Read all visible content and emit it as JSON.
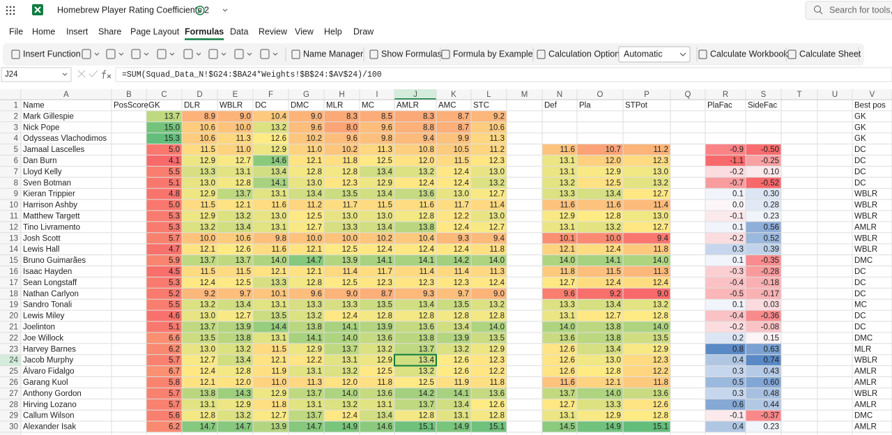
{
  "app": {
    "title": "Homebrew Player Rating Coefficients 2",
    "search": "Search for tools, h"
  },
  "menu": [
    "File",
    "Home",
    "Insert",
    "Share",
    "Page Layout",
    "Formulas",
    "Data",
    "Review",
    "View",
    "Help",
    "Draw"
  ],
  "ribbon": {
    "insert_function": "Insert Function",
    "name_manager": "Name Manager",
    "show_formulas": "Show Formulas",
    "formula_by_example": "Formula by Example",
    "calculation_options": "Calculation Options",
    "calc_mode": "Automatic",
    "calculate_workbook": "Calculate Workbook",
    "calculate_sheet": "Calculate Sheet"
  },
  "formula_bar": {
    "cell": "J24",
    "formula": "=SUM(Squad_Data_N!$G24:$BA24*Weights!$B$24:$AV$24)/100"
  },
  "sheet": {
    "columns": [
      "A",
      "B",
      "C",
      "D",
      "E",
      "F",
      "G",
      "H",
      "I",
      "J",
      "K",
      "L",
      "M",
      "N",
      "O",
      "P",
      "Q",
      "R",
      "S",
      "T",
      "U",
      "V"
    ],
    "row_numbers": [
      1,
      2,
      3,
      4,
      5,
      6,
      7,
      8,
      9,
      10,
      11,
      12,
      13,
      14,
      15,
      16,
      17,
      18,
      19,
      20,
      21,
      22,
      23,
      24,
      25,
      26,
      27,
      28,
      29,
      30
    ],
    "header": {
      "A": "Name",
      "B": "PosScore",
      "C": "GK",
      "D": "DLR",
      "E": "WBLR",
      "F": "DC",
      "G": "DMC",
      "H": "MLR",
      "I": "MC",
      "J": "AMLR",
      "K": "AMC",
      "L": "STC",
      "N": "Def",
      "O": "Pla",
      "P": "STPot",
      "R": "PlaFac",
      "S": "SideFac",
      "V": "Best pos"
    },
    "rows": [
      {
        "A": "Mark Gillespie",
        "C": "13.7",
        "D": "8.9",
        "E": "9.0",
        "F": "10.4",
        "G": "9.0",
        "H": "8.3",
        "I": "8.5",
        "J": "8.3",
        "K": "8.7",
        "L": "9.2",
        "V": "GK"
      },
      {
        "A": "Nick Pope",
        "C": "15.0",
        "D": "10.6",
        "E": "10.0",
        "F": "13.2",
        "G": "9.6",
        "H": "8.0",
        "I": "9.6",
        "J": "8.8",
        "K": "8.7",
        "L": "10.6",
        "V": "GK"
      },
      {
        "A": "Odysseas Vlachodimos",
        "C": "15.3",
        "D": "10.6",
        "E": "11.3",
        "F": "12.6",
        "G": "10.2",
        "H": "9.6",
        "I": "9.8",
        "J": "9.4",
        "K": "9.9",
        "L": "11.3",
        "V": "GK"
      },
      {
        "A": "Jamaal Lascelles",
        "C": "5.0",
        "D": "11.5",
        "E": "11.0",
        "F": "12.9",
        "G": "11.0",
        "H": "10.2",
        "I": "11.3",
        "J": "10.8",
        "K": "10.5",
        "L": "11.2",
        "N": "11.6",
        "O": "10.7",
        "P": "11.2",
        "R": "-0.9",
        "S": "-0.50",
        "V": "DC"
      },
      {
        "A": "Dan Burn",
        "C": "4.1",
        "D": "12.9",
        "E": "12.7",
        "F": "14.6",
        "G": "12.1",
        "H": "11.8",
        "I": "12.5",
        "J": "12.0",
        "K": "11.5",
        "L": "12.3",
        "N": "13.1",
        "O": "12.0",
        "P": "12.3",
        "R": "-1.1",
        "S": "-0.25",
        "V": "DC"
      },
      {
        "A": "Lloyd Kelly",
        "C": "5.5",
        "D": "13.3",
        "E": "13.1",
        "F": "13.4",
        "G": "12.8",
        "H": "12.8",
        "I": "13.4",
        "J": "13.2",
        "K": "12.4",
        "L": "13.0",
        "N": "13.1",
        "O": "12.9",
        "P": "13.0",
        "R": "-0.2",
        "S": "0.10",
        "V": "DC"
      },
      {
        "A": "Sven Botman",
        "C": "5.1",
        "D": "13.0",
        "E": "12.8",
        "F": "14.1",
        "G": "13.0",
        "H": "12.3",
        "I": "12.9",
        "J": "12.4",
        "K": "12.4",
        "L": "13.2",
        "N": "13.2",
        "O": "12.5",
        "P": "13.2",
        "R": "-0.7",
        "S": "-0.52",
        "V": "DC"
      },
      {
        "A": "Kieran Trippier",
        "C": "4.8",
        "D": "12.9",
        "E": "13.7",
        "F": "13.1",
        "G": "13.4",
        "H": "13.5",
        "I": "13.4",
        "J": "13.6",
        "K": "13.0",
        "L": "12.7",
        "N": "13.3",
        "O": "13.4",
        "P": "12.7",
        "R": "0.1",
        "S": "0.30",
        "V": "WBLR"
      },
      {
        "A": "Harrison Ashby",
        "C": "5.0",
        "D": "11.5",
        "E": "12.1",
        "F": "11.6",
        "G": "11.2",
        "H": "11.7",
        "I": "11.5",
        "J": "11.6",
        "K": "11.7",
        "L": "11.4",
        "N": "11.6",
        "O": "11.6",
        "P": "11.4",
        "R": "0.0",
        "S": "0.28",
        "V": "WBLR"
      },
      {
        "A": "Matthew Targett",
        "C": "5.3",
        "D": "12.9",
        "E": "13.2",
        "F": "13.0",
        "G": "12.5",
        "H": "13.0",
        "I": "13.0",
        "J": "12.8",
        "K": "12.2",
        "L": "13.0",
        "N": "12.9",
        "O": "12.8",
        "P": "13.0",
        "R": "-0.1",
        "S": "0.23",
        "V": "WBLR"
      },
      {
        "A": "Tino Livramento",
        "C": "5.3",
        "D": "13.2",
        "E": "13.4",
        "F": "13.1",
        "G": "12.7",
        "H": "13.3",
        "I": "13.4",
        "J": "13.8",
        "K": "12.4",
        "L": "12.7",
        "N": "13.1",
        "O": "13.2",
        "P": "12.7",
        "R": "0.1",
        "S": "0.56",
        "V": "AMLR"
      },
      {
        "A": "Josh Scott",
        "C": "5.7",
        "D": "10.0",
        "E": "10.6",
        "F": "9.8",
        "G": "10.0",
        "H": "10.0",
        "I": "10.2",
        "J": "10.4",
        "K": "9.3",
        "L": "9.4",
        "N": "10.1",
        "O": "10.0",
        "P": "9.4",
        "R": "-0.2",
        "S": "0.52",
        "V": "WBLR"
      },
      {
        "A": "Lewis Hall",
        "C": "4.7",
        "D": "12.1",
        "E": "12.6",
        "F": "11.6",
        "G": "12.1",
        "H": "12.5",
        "I": "12.4",
        "J": "12.4",
        "K": "12.4",
        "L": "11.8",
        "N": "12.1",
        "O": "12.4",
        "P": "11.8",
        "R": "0.3",
        "S": "0.39",
        "V": "WBLR"
      },
      {
        "A": "Bruno Guimarães",
        "C": "5.9",
        "D": "13.7",
        "E": "13.7",
        "F": "14.0",
        "G": "14.7",
        "H": "13.9",
        "I": "14.1",
        "J": "14.1",
        "K": "14.2",
        "L": "14.0",
        "N": "14.0",
        "O": "14.1",
        "P": "14.0",
        "R": "0.1",
        "S": "-0.35",
        "V": "DMC"
      },
      {
        "A": "Isaac Hayden",
        "C": "4.5",
        "D": "11.5",
        "E": "11.5",
        "F": "12.1",
        "G": "12.1",
        "H": "11.4",
        "I": "11.7",
        "J": "11.4",
        "K": "11.4",
        "L": "11.3",
        "N": "11.8",
        "O": "11.5",
        "P": "11.3",
        "R": "-0.3",
        "S": "-0.28",
        "V": "DC"
      },
      {
        "A": "Sean Longstaff",
        "C": "5.3",
        "D": "12.4",
        "E": "12.5",
        "F": "13.3",
        "G": "12.8",
        "H": "12.5",
        "I": "12.3",
        "J": "12.3",
        "K": "12.3",
        "L": "12.4",
        "N": "12.7",
        "O": "12.4",
        "P": "12.4",
        "R": "-0.4",
        "S": "-0.18",
        "V": "DC"
      },
      {
        "A": "Nathan Carlyon",
        "C": "5.2",
        "D": "9.2",
        "E": "9.7",
        "F": "10.1",
        "G": "9.6",
        "H": "9.0",
        "I": "8.7",
        "J": "9.3",
        "K": "9.7",
        "L": "9.0",
        "N": "9.6",
        "O": "9.2",
        "P": "9.0",
        "R": "-0.5",
        "S": "-0.17",
        "V": "DC"
      },
      {
        "A": "Sandro Tonali",
        "C": "5.5",
        "D": "13.2",
        "E": "13.4",
        "F": "13.1",
        "G": "13.3",
        "H": "13.3",
        "I": "13.5",
        "J": "13.4",
        "K": "13.5",
        "L": "13.2",
        "N": "13.3",
        "O": "13.4",
        "P": "13.2",
        "R": "0.1",
        "S": "0.03",
        "V": "MC"
      },
      {
        "A": "Lewis Miley",
        "C": "4.6",
        "D": "13.0",
        "E": "12.7",
        "F": "13.5",
        "G": "13.2",
        "H": "12.4",
        "I": "12.8",
        "J": "12.8",
        "K": "12.8",
        "L": "12.8",
        "N": "13.1",
        "O": "12.7",
        "P": "12.8",
        "R": "-0.4",
        "S": "-0.36",
        "V": "DC"
      },
      {
        "A": "Joelinton",
        "C": "5.1",
        "D": "13.7",
        "E": "13.9",
        "F": "14.4",
        "G": "13.8",
        "H": "14.1",
        "I": "13.9",
        "J": "13.6",
        "K": "13.4",
        "L": "14.0",
        "N": "14.0",
        "O": "13.8",
        "P": "14.0",
        "R": "-0.2",
        "S": "-0.08",
        "V": "DC"
      },
      {
        "A": "Joe Willock",
        "C": "6.6",
        "D": "13.5",
        "E": "13.8",
        "F": "13.1",
        "G": "14.1",
        "H": "14.0",
        "I": "13.6",
        "J": "13.8",
        "K": "13.9",
        "L": "13.5",
        "N": "13.6",
        "O": "13.8",
        "P": "13.5",
        "R": "0.2",
        "S": "0.15",
        "V": "DMC"
      },
      {
        "A": "Harvey Barnes",
        "C": "6.2",
        "D": "13.0",
        "E": "13.2",
        "F": "11.5",
        "G": "12.9",
        "H": "13.7",
        "I": "13.2",
        "J": "13.7",
        "K": "13.2",
        "L": "12.9",
        "N": "12.6",
        "O": "13.4",
        "P": "12.9",
        "R": "0.8",
        "S": "0.63",
        "V": "MLR"
      },
      {
        "A": "Jacob Murphy",
        "C": "5.7",
        "D": "12.7",
        "E": "13.4",
        "F": "12.1",
        "G": "12.2",
        "H": "13.1",
        "I": "12.9",
        "J": "13.4",
        "K": "12.6",
        "L": "12.3",
        "N": "12.6",
        "O": "13.0",
        "P": "12.3",
        "R": "0.4",
        "S": "0.74",
        "V": "WBLR"
      },
      {
        "A": "Álvaro Fidalgo",
        "C": "6.7",
        "D": "12.4",
        "E": "12.8",
        "F": "11.9",
        "G": "13.1",
        "H": "13.2",
        "I": "12.5",
        "J": "13.2",
        "K": "12.6",
        "L": "12.2",
        "N": "12.6",
        "O": "12.8",
        "P": "12.2",
        "R": "0.3",
        "S": "0.43",
        "V": "AMLR"
      },
      {
        "A": "Garang Kuol",
        "C": "5.8",
        "D": "12.1",
        "E": "12.0",
        "F": "11.0",
        "G": "11.3",
        "H": "12.0",
        "I": "11.8",
        "J": "12.5",
        "K": "11.9",
        "L": "11.8",
        "N": "11.6",
        "O": "12.1",
        "P": "11.8",
        "R": "0.5",
        "S": "0.60",
        "V": "AMLR"
      },
      {
        "A": "Anthony Gordon",
        "C": "5.7",
        "D": "13.8",
        "E": "14.3",
        "F": "12.9",
        "G": "13.7",
        "H": "14.0",
        "I": "13.6",
        "J": "14.2",
        "K": "14.1",
        "L": "13.6",
        "N": "13.7",
        "O": "14.0",
        "P": "13.6",
        "R": "0.3",
        "S": "0.48",
        "V": "WBLR"
      },
      {
        "A": "Hirving Lozano",
        "C": "5.7",
        "D": "13.1",
        "E": "12.9",
        "F": "11.8",
        "G": "13.1",
        "H": "13.2",
        "I": "13.1",
        "J": "13.7",
        "K": "13.4",
        "L": "12.6",
        "N": "12.7",
        "O": "13.3",
        "P": "12.6",
        "R": "0.6",
        "S": "0.44",
        "V": "AMLR"
      },
      {
        "A": "Callum Wilson",
        "C": "5.6",
        "D": "12.8",
        "E": "13.2",
        "F": "12.7",
        "G": "13.7",
        "H": "12.4",
        "I": "13.4",
        "J": "12.8",
        "K": "13.1",
        "L": "12.8",
        "N": "13.1",
        "O": "12.9",
        "P": "12.8",
        "R": "-0.1",
        "S": "-0.37",
        "V": "DMC"
      },
      {
        "A": "Alexander Isak",
        "C": "6.2",
        "D": "14.7",
        "E": "14.7",
        "F": "13.9",
        "G": "14.7",
        "H": "14.9",
        "I": "14.6",
        "J": "15.1",
        "K": "14.9",
        "L": "15.1",
        "N": "14.5",
        "O": "14.9",
        "P": "15.1",
        "R": "0.4",
        "S": "0.23",
        "V": "AMLR"
      }
    ]
  }
}
